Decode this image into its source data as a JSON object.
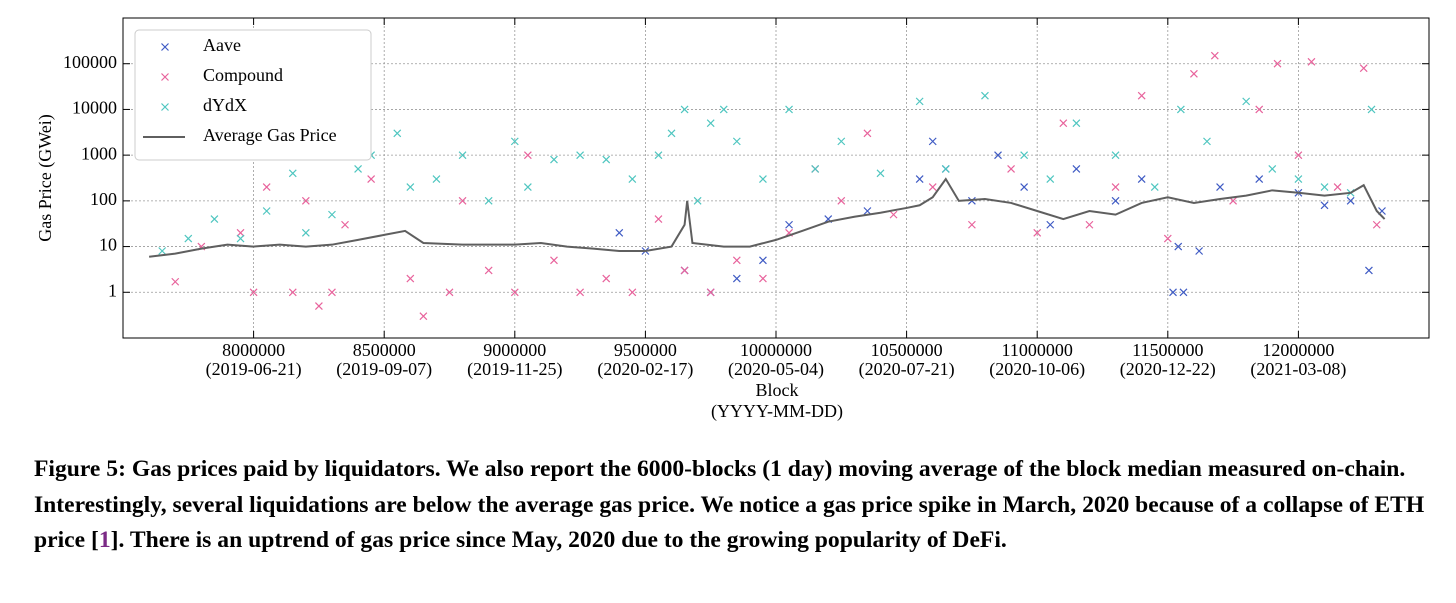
{
  "chart_data": {
    "type": "scatter",
    "ylabel": "Gas Price (GWei)",
    "xlabel": "Block",
    "xlabel_sub": "(YYYY-MM-DD)",
    "xlim": [
      7500000,
      12500000
    ],
    "ylim": [
      0.1,
      1000000
    ],
    "yscale": "log",
    "grid": true,
    "legend": "upper left",
    "xticks": [
      8000000,
      8500000,
      9000000,
      9500000,
      10000000,
      10500000,
      11000000,
      11500000,
      12000000
    ],
    "xtick_dates": [
      "(2019-06-21)",
      "(2019-09-07)",
      "(2019-11-25)",
      "(2020-02-17)",
      "(2020-05-04)",
      "(2020-07-21)",
      "(2020-10-06)",
      "(2020-12-22)",
      "(2021-03-08)"
    ],
    "yticks": [
      1,
      10,
      100,
      1000,
      10000,
      100000
    ],
    "series": [
      {
        "name": "Aave",
        "color": "#3f5bc4",
        "kind": "scatter",
        "x": [
          9400000,
          9500000,
          9650000,
          9750000,
          9850000,
          9950000,
          10050000,
          10200000,
          10350000,
          10550000,
          10600000,
          10650000,
          10750000,
          10850000,
          10950000,
          11050000,
          11150000,
          11300000,
          11400000,
          11520000,
          11540000,
          11560000,
          11620000,
          11700000,
          11850000,
          12000000,
          12100000,
          12200000,
          12270000,
          12320000
        ],
        "values": [
          20,
          8,
          3,
          1,
          2,
          5,
          30,
          40,
          60,
          300,
          2000,
          500,
          100,
          1000,
          200,
          30,
          500,
          100,
          300,
          1,
          10,
          1,
          8,
          200,
          300,
          150,
          80,
          100,
          3,
          60
        ]
      },
      {
        "name": "Compound",
        "color": "#e8639c",
        "kind": "scatter",
        "x": [
          7700000,
          7800000,
          7950000,
          8000000,
          8050000,
          8150000,
          8200000,
          8250000,
          8300000,
          8350000,
          8450000,
          8600000,
          8650000,
          8750000,
          8800000,
          8900000,
          9000000,
          9050000,
          9150000,
          9250000,
          9350000,
          9450000,
          9550000,
          9650000,
          9750000,
          9850000,
          9950000,
          10050000,
          10150000,
          10250000,
          10350000,
          10450000,
          10600000,
          10750000,
          10900000,
          11000000,
          11100000,
          11200000,
          11300000,
          11400000,
          11500000,
          11600000,
          11680000,
          11750000,
          11850000,
          11920000,
          12000000,
          12050000,
          12150000,
          12250000,
          12300000
        ],
        "values": [
          1.7,
          10,
          20,
          1,
          200,
          1,
          100,
          0.5,
          1,
          30,
          300,
          2,
          0.3,
          1,
          100,
          3,
          1,
          1000,
          5,
          1,
          2,
          1,
          40,
          3,
          1,
          5,
          2,
          20,
          500,
          100,
          3000,
          50,
          200,
          30,
          500,
          20,
          5000,
          30,
          200,
          20000,
          15,
          60000,
          150000,
          100,
          10000,
          100000,
          1000,
          110000,
          200,
          80000,
          30
        ]
      },
      {
        "name": "dYdX",
        "color": "#4fc6c0",
        "kind": "scatter",
        "x": [
          7650000,
          7750000,
          7850000,
          7950000,
          8050000,
          8150000,
          8200000,
          8300000,
          8400000,
          8450000,
          8550000,
          8600000,
          8700000,
          8800000,
          8900000,
          9000000,
          9050000,
          9150000,
          9250000,
          9350000,
          9450000,
          9550000,
          9600000,
          9650000,
          9700000,
          9750000,
          9800000,
          9850000,
          9950000,
          10050000,
          10150000,
          10250000,
          10400000,
          10550000,
          10650000,
          10800000,
          10950000,
          11050000,
          11150000,
          11300000,
          11450000,
          11550000,
          11650000,
          11800000,
          11900000,
          12000000,
          12100000,
          12200000,
          12280000
        ],
        "values": [
          8,
          15,
          40,
          15,
          60,
          400,
          20,
          50,
          500,
          1000,
          3000,
          200,
          300,
          1000,
          100,
          2000,
          200,
          800,
          1000,
          800,
          300,
          1000,
          3000,
          10000,
          100,
          5000,
          10000,
          2000,
          300,
          10000,
          500,
          2000,
          400,
          15000,
          500,
          20000,
          1000,
          300,
          5000,
          1000,
          200,
          10000,
          2000,
          15000,
          500,
          300,
          200,
          150,
          10000
        ]
      },
      {
        "name": "Average Gas Price",
        "color": "#5f5f5f",
        "kind": "line",
        "x": [
          7600000,
          7700000,
          7800000,
          7900000,
          8000000,
          8100000,
          8200000,
          8300000,
          8400000,
          8500000,
          8580000,
          8650000,
          8800000,
          9000000,
          9100000,
          9200000,
          9300000,
          9400000,
          9500000,
          9600000,
          9650000,
          9660000,
          9680000,
          9800000,
          9900000,
          10000000,
          10100000,
          10200000,
          10300000,
          10400000,
          10500000,
          10550000,
          10600000,
          10650000,
          10700000,
          10800000,
          10900000,
          11000000,
          11100000,
          11200000,
          11300000,
          11400000,
          11500000,
          11600000,
          11700000,
          11800000,
          11900000,
          12000000,
          12100000,
          12200000,
          12250000,
          12300000,
          12330000
        ],
        "values": [
          6,
          7,
          9,
          11,
          10,
          11,
          10,
          11,
          14,
          18,
          22,
          12,
          11,
          11,
          12,
          10,
          9,
          8,
          8,
          10,
          30,
          100,
          12,
          10,
          10,
          14,
          22,
          35,
          45,
          55,
          70,
          80,
          120,
          300,
          100,
          110,
          90,
          60,
          40,
          60,
          50,
          90,
          120,
          90,
          110,
          130,
          170,
          150,
          130,
          150,
          220,
          60,
          40
        ]
      }
    ]
  },
  "caption": {
    "lead": "Figure 5:",
    "text": "Gas prices paid by liquidators. We also report the 6000-blocks (1 day) moving average of the block median measured on-chain. Interestingly, several liquidations are below the average gas price. We notice a gas price spike in March, 2020 because of a collapse of ETH price [",
    "citation": "1",
    "tail": "]. There is an uptrend of gas price since May, 2020 due to the growing popularity of DeFi."
  }
}
